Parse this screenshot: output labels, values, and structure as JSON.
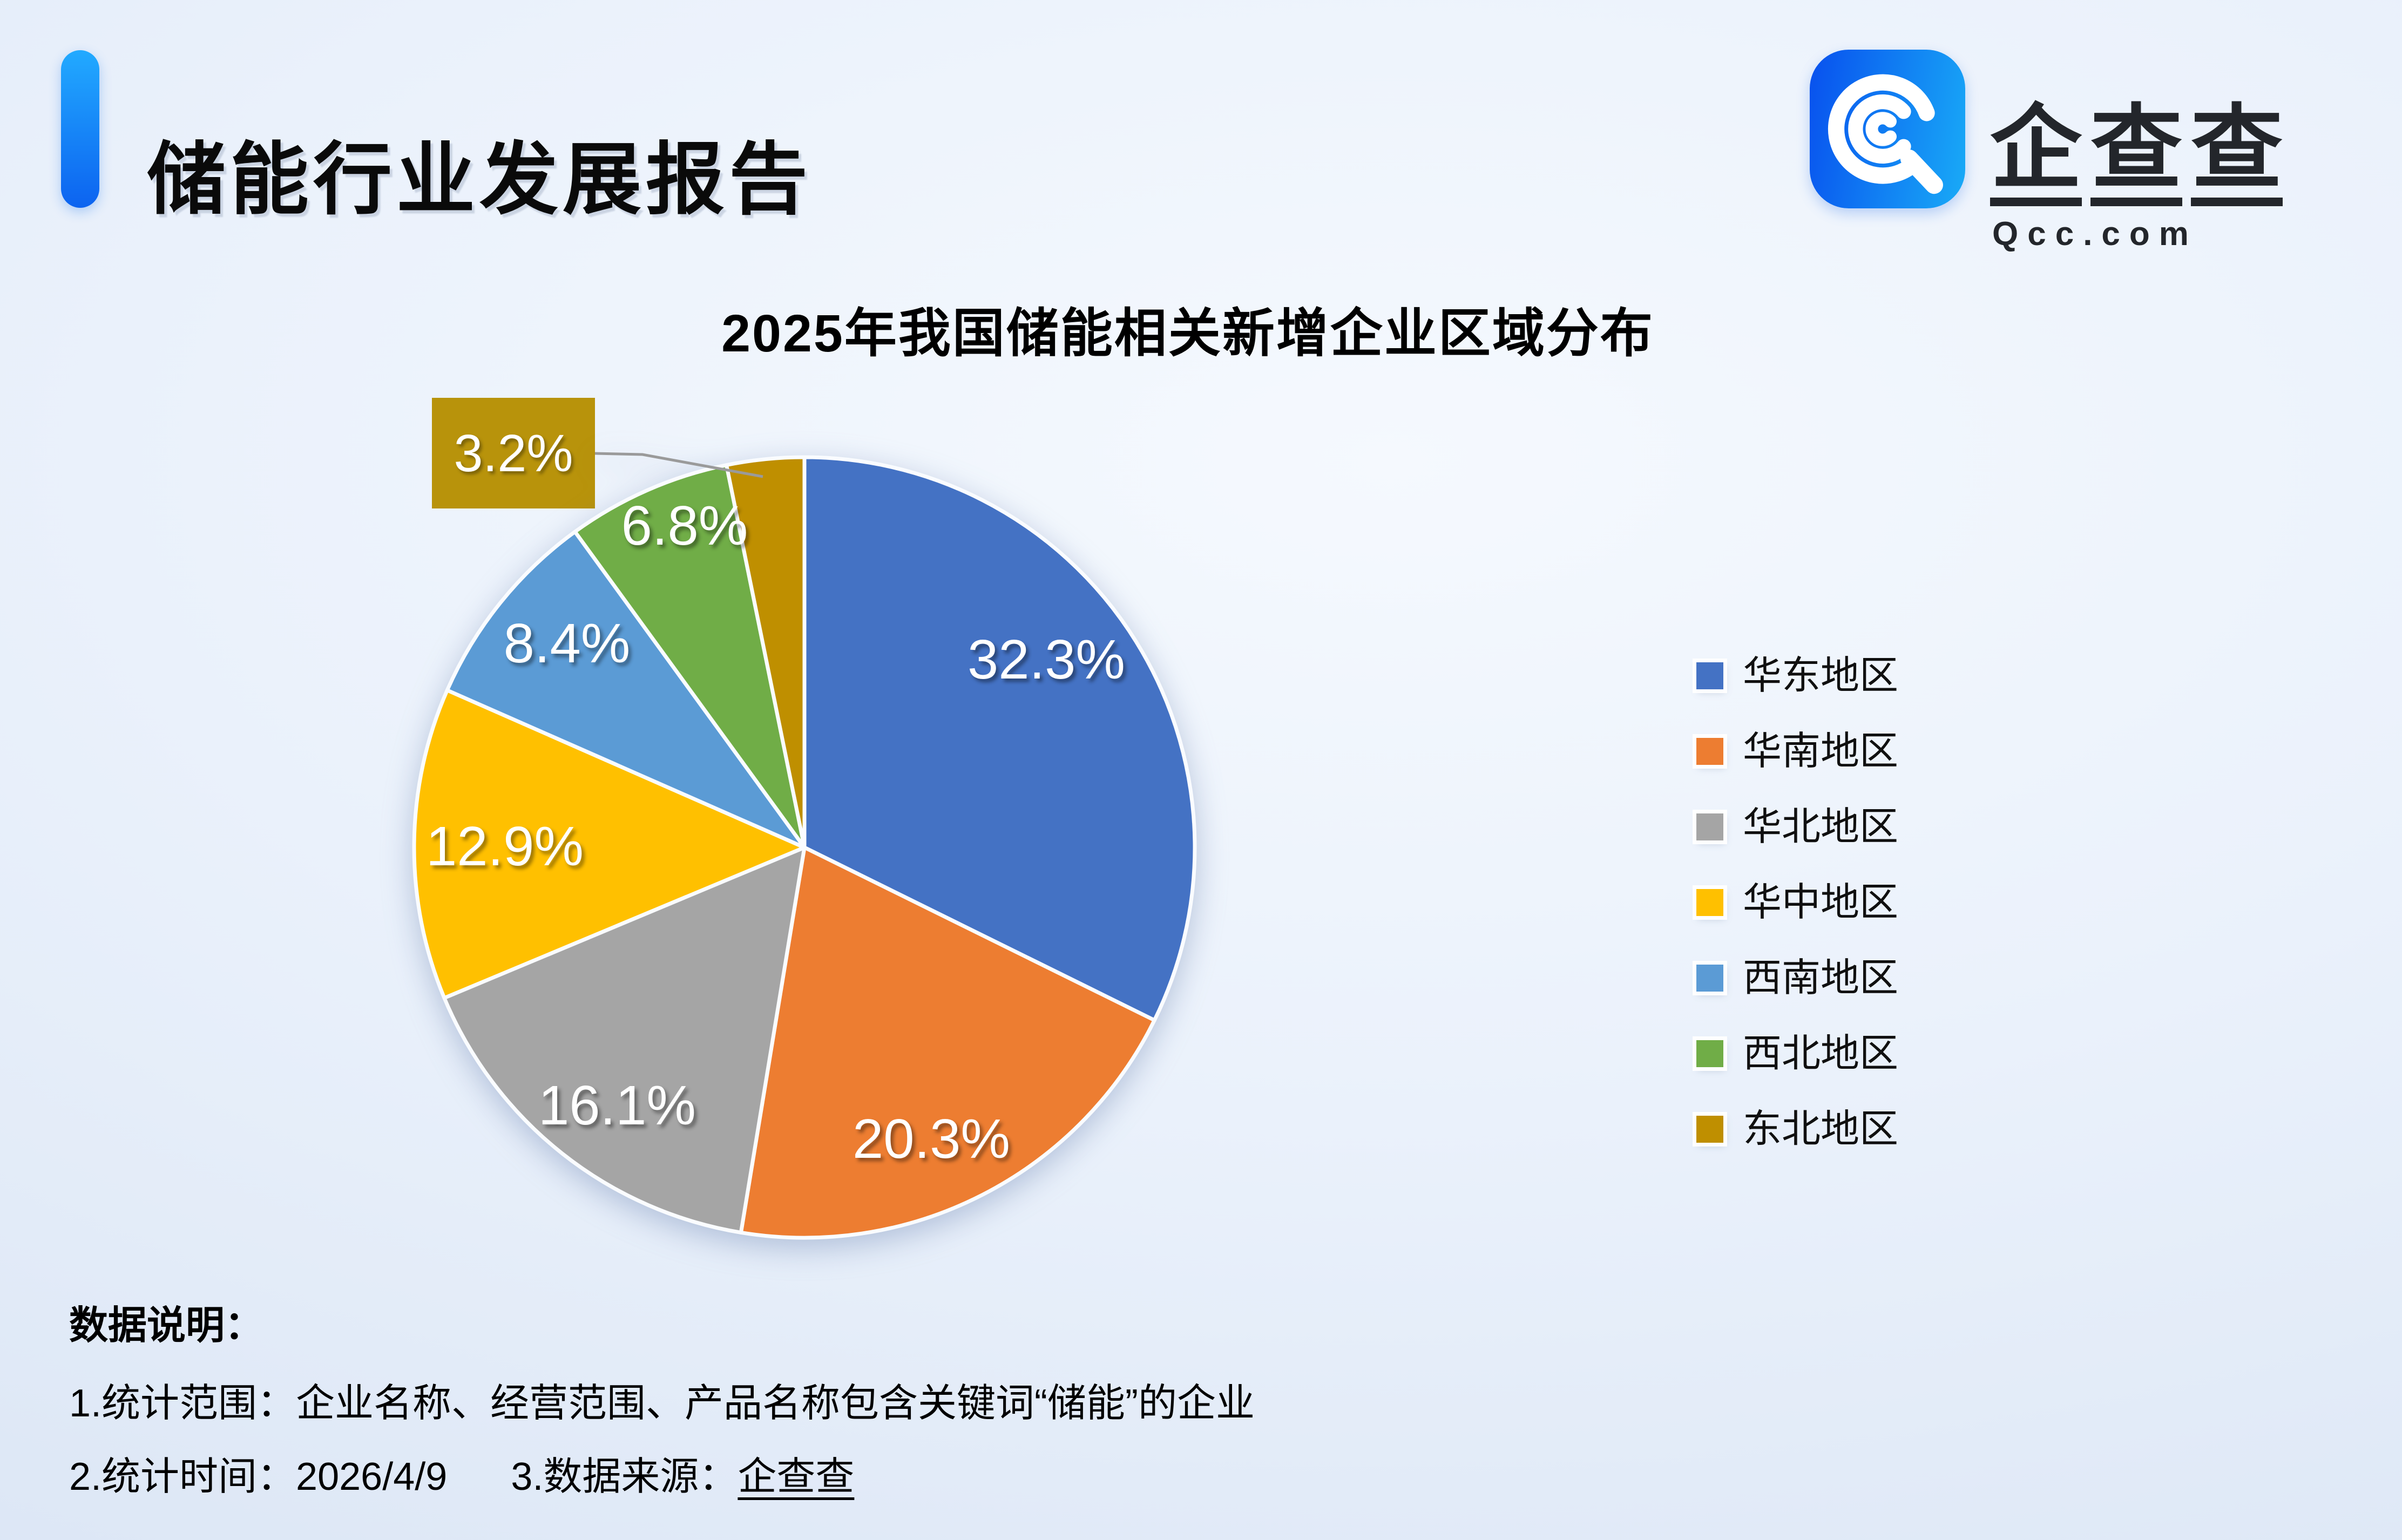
{
  "header": {
    "title": "储能行业发展报告",
    "accent_bar_color": "#0d7bf6"
  },
  "brand": {
    "name": "企查查",
    "chars": [
      "企",
      "查",
      "查"
    ],
    "domain": "Qcc.com",
    "icon_gradient_left": "#0850EE",
    "icon_gradient_right": "#19ABF7"
  },
  "chart_data": {
    "type": "pie",
    "title": "2025年我国储能相关新增企业区域分布",
    "unit": "%",
    "legend_position": "right",
    "start_angle_deg": 0,
    "direction": "clockwise",
    "slices": [
      {
        "label": "华东地区",
        "value": 32.3,
        "display": "32.3%",
        "color": "#4472C4"
      },
      {
        "label": "华南地区",
        "value": 20.3,
        "display": "20.3%",
        "color": "#ED7D31"
      },
      {
        "label": "华北地区",
        "value": 16.1,
        "display": "16.1%",
        "color": "#A5A5A5"
      },
      {
        "label": "华中地区",
        "value": 12.9,
        "display": "12.9%",
        "color": "#FFC000"
      },
      {
        "label": "西南地区",
        "value": 8.4,
        "display": "8.4%",
        "color": "#5B9BD5"
      },
      {
        "label": "西北地区",
        "value": 6.8,
        "display": "6.8%",
        "color": "#70AD47"
      },
      {
        "label": "东北地区",
        "value": 3.2,
        "display": "3.2%",
        "color": "#BF8F00"
      }
    ],
    "callout": {
      "for": "东北地区",
      "text": "3.2%",
      "box_color": "#B8930B",
      "line_color": "#9A9A9A"
    }
  },
  "notes": {
    "heading": "数据说明：",
    "line1": "1.统计范围：企业名称、经营范围、产品名称包含关键词“储能”的企业",
    "line2_part1": "2.统计时间：2026/4/9",
    "line2_part2": "3.数据来源：",
    "line2_source": "企查查"
  }
}
